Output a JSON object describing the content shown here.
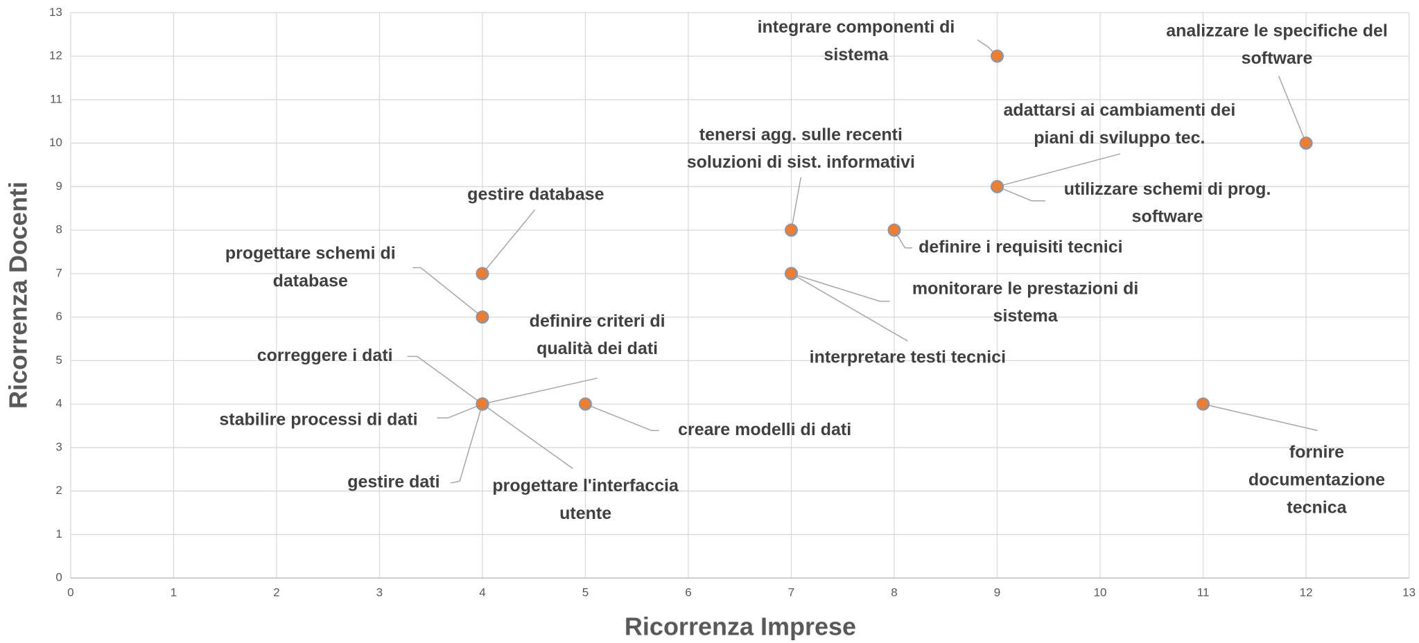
{
  "chart_data": {
    "type": "scatter",
    "x_label": "Ricorrenza Imprese",
    "y_label": "Ricorrenza Docenti",
    "xlim": [
      0,
      13
    ],
    "ylim": [
      0,
      13
    ],
    "xticks": [
      0,
      1,
      2,
      3,
      4,
      5,
      6,
      7,
      8,
      9,
      10,
      11,
      12,
      13
    ],
    "yticks": [
      0,
      1,
      2,
      3,
      4,
      5,
      6,
      7,
      8,
      9,
      10,
      11,
      12,
      13
    ],
    "grid": true,
    "color": "#ed7d31",
    "x": [
      9,
      12,
      9,
      9,
      7,
      8,
      7,
      7,
      4,
      4,
      4,
      4,
      4,
      4,
      4,
      5,
      11
    ],
    "values": [
      12,
      10,
      9,
      9,
      8,
      8,
      7,
      7,
      7,
      6,
      4,
      4,
      4,
      4,
      4,
      4,
      4
    ],
    "labels": [
      [
        "integrare componenti di",
        "sistema"
      ],
      [
        "analizzare le specifiche del",
        "software"
      ],
      [
        "adattarsi ai cambiamenti dei",
        "piani di sviluppo tec."
      ],
      [
        "utilizzare schemi di prog.",
        "software"
      ],
      [
        "tenersi agg. sulle recenti",
        "soluzioni di sist. informativi"
      ],
      [
        "definire i requisiti tecnici"
      ],
      [
        "monitorare le prestazioni di",
        "sistema"
      ],
      [
        "interpretare testi tecnici"
      ],
      [
        "gestire database"
      ],
      [
        "progettare schemi di",
        "database"
      ],
      [
        "definire criteri di",
        "qualità  dei dati"
      ],
      [
        "correggere i dati"
      ],
      [
        "stabilire processi di dati"
      ],
      [
        "gestire dati"
      ],
      [
        "progettare l'interfaccia",
        "utente"
      ],
      [
        "creare modelli di dati"
      ],
      [
        "fornire",
        "documentazione",
        "tecnica"
      ]
    ]
  }
}
